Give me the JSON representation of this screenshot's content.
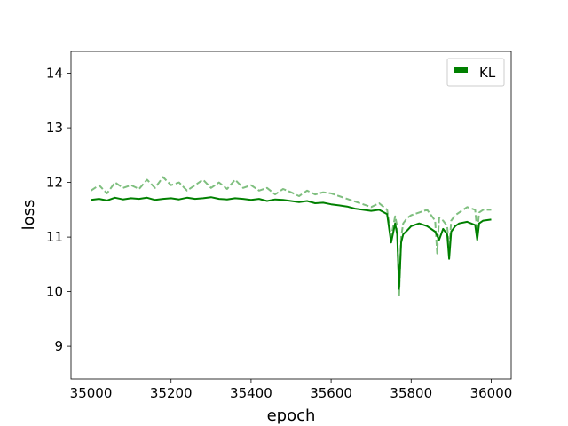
{
  "chart_data": {
    "type": "line",
    "title": "",
    "xlabel": "epoch",
    "ylabel": "loss",
    "xlim": [
      34950,
      36050
    ],
    "ylim": [
      8.4,
      14.4
    ],
    "xticks": [
      35000,
      35200,
      35400,
      35600,
      35800,
      36000
    ],
    "yticks": [
      9,
      10,
      11,
      12,
      13,
      14
    ],
    "grid": false,
    "legend": {
      "placement": "top-right",
      "entries": [
        {
          "label": "KL",
          "color": "#008000"
        }
      ]
    },
    "series": [
      {
        "name": "KL",
        "color": "#008000",
        "style": "solid",
        "x": [
          35000,
          35020,
          35040,
          35060,
          35080,
          35100,
          35120,
          35140,
          35160,
          35180,
          35200,
          35220,
          35240,
          35260,
          35280,
          35300,
          35320,
          35340,
          35360,
          35380,
          35400,
          35420,
          35440,
          35460,
          35480,
          35500,
          35520,
          35540,
          35560,
          35580,
          35600,
          35620,
          35640,
          35660,
          35680,
          35700,
          35720,
          35740,
          35750,
          35760,
          35765,
          35770,
          35775,
          35780,
          35790,
          35800,
          35820,
          35840,
          35860,
          35870,
          35880,
          35890,
          35895,
          35900,
          35910,
          35920,
          35940,
          35960,
          35965,
          35970,
          35980,
          36000
        ],
        "values": [
          11.68,
          11.7,
          11.67,
          11.72,
          11.69,
          11.71,
          11.7,
          11.72,
          11.68,
          11.7,
          11.71,
          11.69,
          11.72,
          11.7,
          11.71,
          11.73,
          11.7,
          11.69,
          11.71,
          11.7,
          11.68,
          11.7,
          11.66,
          11.69,
          11.68,
          11.66,
          11.64,
          11.66,
          11.62,
          11.63,
          11.6,
          11.58,
          11.56,
          11.52,
          11.5,
          11.48,
          11.5,
          11.42,
          10.9,
          11.25,
          11.05,
          10.05,
          10.9,
          11.05,
          11.12,
          11.2,
          11.25,
          11.2,
          11.1,
          10.95,
          11.15,
          11.05,
          10.6,
          11.1,
          11.2,
          11.25,
          11.28,
          11.22,
          10.95,
          11.25,
          11.3,
          11.32
        ]
      },
      {
        "name": "",
        "color": "#7fbf7f",
        "style": "dashed",
        "x": [
          35000,
          35020,
          35040,
          35060,
          35080,
          35100,
          35120,
          35140,
          35160,
          35180,
          35200,
          35220,
          35240,
          35260,
          35280,
          35300,
          35320,
          35340,
          35360,
          35380,
          35400,
          35420,
          35440,
          35460,
          35480,
          35500,
          35520,
          35540,
          35560,
          35580,
          35600,
          35620,
          35640,
          35660,
          35680,
          35700,
          35720,
          35740,
          35750,
          35760,
          35765,
          35770,
          35775,
          35780,
          35790,
          35800,
          35820,
          35840,
          35860,
          35865,
          35870,
          35880,
          35890,
          35895,
          35900,
          35910,
          35920,
          35940,
          35960,
          35965,
          35970,
          35980,
          36000
        ],
        "values": [
          11.85,
          11.95,
          11.8,
          12.0,
          11.9,
          11.95,
          11.88,
          12.05,
          11.9,
          12.1,
          11.95,
          12.0,
          11.85,
          11.95,
          12.05,
          11.9,
          12.0,
          11.88,
          12.05,
          11.9,
          11.95,
          11.85,
          11.9,
          11.78,
          11.88,
          11.82,
          11.75,
          11.85,
          11.78,
          11.82,
          11.8,
          11.75,
          11.7,
          11.65,
          11.6,
          11.55,
          11.62,
          11.5,
          11.0,
          11.38,
          11.2,
          9.9,
          11.0,
          11.25,
          11.35,
          11.4,
          11.45,
          11.5,
          11.3,
          10.7,
          11.35,
          11.3,
          11.2,
          10.75,
          11.3,
          11.4,
          11.45,
          11.55,
          11.5,
          11.1,
          11.45,
          11.5,
          11.5
        ]
      }
    ]
  }
}
